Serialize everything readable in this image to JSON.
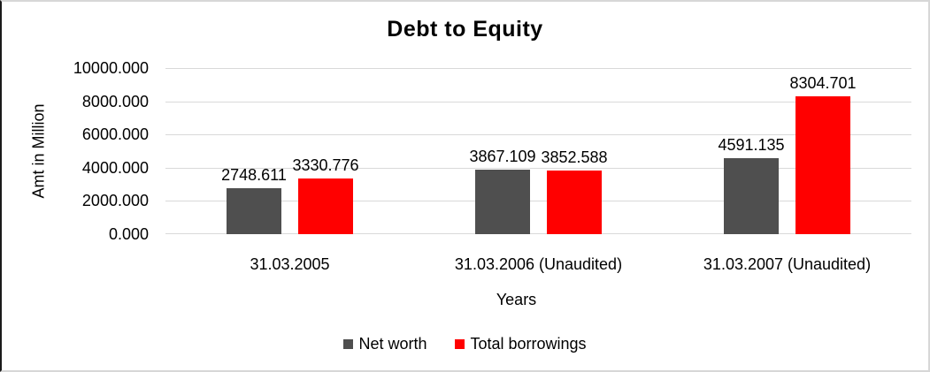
{
  "chart_data": {
    "type": "bar",
    "title": "Debt to Equity",
    "xlabel": "Years",
    "ylabel": "Amt in Million",
    "categories": [
      "31.03.2005",
      "31.03.2006 (Unaudited)",
      "31.03.2007 (Unaudited)"
    ],
    "series": [
      {
        "name": "Net worth",
        "color": "#4f4f4f",
        "values": [
          2748.611,
          3867.109,
          4591.135
        ],
        "labels": [
          "2748.611",
          "3867.109",
          "4591.135"
        ]
      },
      {
        "name": "Total borrowings",
        "color": "#ff0000",
        "values": [
          3330.776,
          3852.588,
          8304.701
        ],
        "labels": [
          "3330.776",
          "3852.588",
          "8304.701"
        ]
      }
    ],
    "ylim": [
      0,
      10000
    ],
    "ytick_step": 2000,
    "ytick_labels": [
      "0.000",
      "2000.000",
      "4000.000",
      "6000.000",
      "8000.000",
      "10000.000"
    ],
    "grid": true,
    "gridline_color": "#d9d9d9",
    "legend_position": "bottom",
    "data_labels_shown": true
  }
}
